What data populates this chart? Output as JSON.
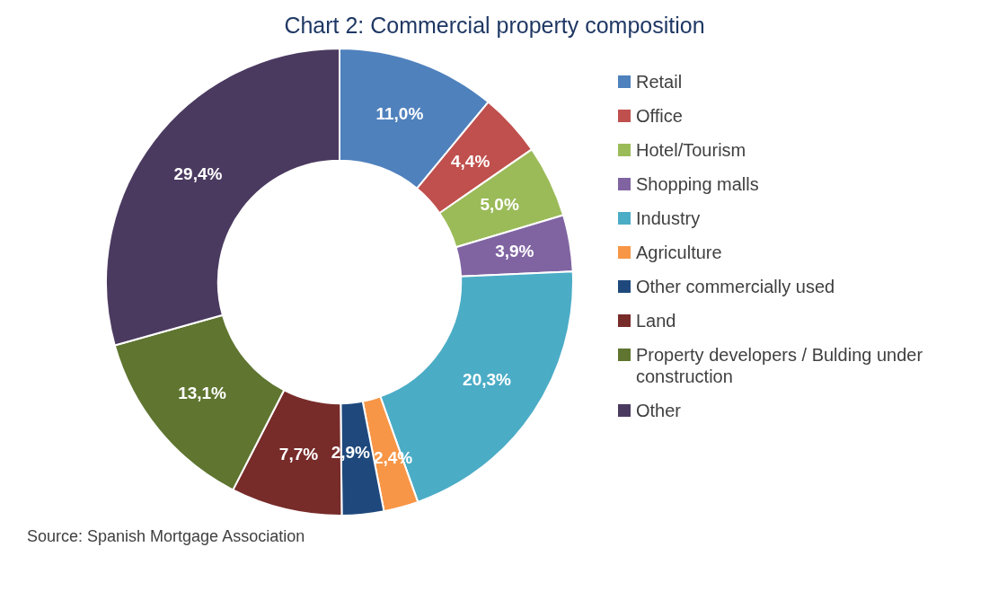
{
  "chart_data": {
    "type": "donut",
    "title": "Chart 2: Commercial property  composition",
    "categories": [
      "Retail",
      "Office",
      "Hotel/Tourism",
      "Shopping malls",
      "Industry",
      "Agriculture",
      "Other commercially used",
      "Land",
      "Property developers / Bulding under construction",
      "Other"
    ],
    "values": [
      11.0,
      4.4,
      5.0,
      3.9,
      20.3,
      2.4,
      2.9,
      7.7,
      13.1,
      29.4
    ],
    "value_labels": [
      "11,0%",
      "4,4%",
      "5,0%",
      "3,9%",
      "20,3%",
      "2,4%",
      "2,9%",
      "7,7%",
      "13,1%",
      "29,4%"
    ],
    "colors": [
      "#4f81bd",
      "#c0504d",
      "#9bbb59",
      "#8064a2",
      "#4bacc6",
      "#f79646",
      "#1f497d",
      "#772c2a",
      "#5f7530",
      "#4b3a60"
    ],
    "legend": "right",
    "annotations": [
      "Source: Spanish Mortgage  Association"
    ]
  }
}
